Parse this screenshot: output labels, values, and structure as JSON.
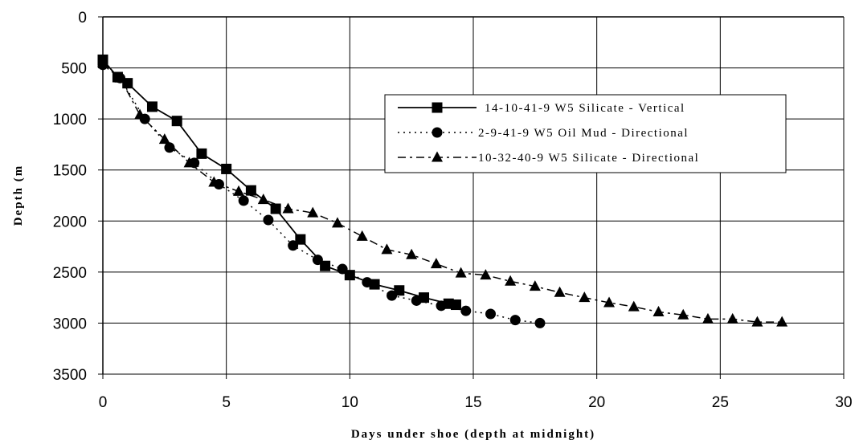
{
  "chart_data": {
    "type": "line",
    "title": "",
    "xlabel": "Days under shoe (depth at midnight)",
    "ylabel": "Depth (m",
    "xlim": [
      0,
      30
    ],
    "ylim": [
      0,
      3500
    ],
    "y_inverted": true,
    "grid": true,
    "legend_position": "center-right",
    "x_ticks": [
      "0",
      "5",
      "10",
      "15",
      "20",
      "25",
      "30"
    ],
    "y_ticks": [
      "0",
      "500",
      "1000",
      "1500",
      "2000",
      "2500",
      "3000",
      "3500"
    ],
    "series": [
      {
        "name": "14-10-41-9 W5 Silicate - Vertical",
        "line_style": "solid",
        "marker": "square",
        "x": [
          0,
          0.6,
          1,
          2,
          3,
          4,
          5,
          6,
          7,
          8,
          9,
          10,
          11,
          12,
          13,
          14,
          14.3
        ],
        "y": [
          420,
          590,
          650,
          880,
          1020,
          1340,
          1490,
          1700,
          1880,
          2180,
          2440,
          2530,
          2620,
          2680,
          2750,
          2810,
          2820
        ]
      },
      {
        "name": "2-9-41-9 W5 Oil Mud - Directional",
        "line_style": "dotted",
        "marker": "circle",
        "x": [
          0,
          0.7,
          1.7,
          2.7,
          3.7,
          4.7,
          5.7,
          6.7,
          7.7,
          8.7,
          9.7,
          10.7,
          11.7,
          12.7,
          13.7,
          14.7,
          15.7,
          16.7,
          17.7
        ],
        "y": [
          470,
          600,
          1000,
          1280,
          1430,
          1640,
          1800,
          1990,
          2240,
          2380,
          2470,
          2600,
          2730,
          2780,
          2830,
          2880,
          2910,
          2970,
          3000
        ]
      },
      {
        "name": "10-32-40-9 W5 Silicate - Directional",
        "line_style": "dash-dot",
        "marker": "triangle",
        "x": [
          0,
          0.7,
          1.5,
          2.5,
          3.5,
          4.5,
          5.5,
          6.5,
          7.5,
          8.5,
          9.5,
          10.5,
          11.5,
          12.5,
          13.5,
          14.5,
          15.5,
          16.5,
          17.5,
          18.5,
          19.5,
          20.5,
          21.5,
          22.5,
          23.5,
          24.5,
          25.5,
          26.5,
          27.5
        ],
        "y": [
          450,
          600,
          960,
          1200,
          1430,
          1620,
          1710,
          1790,
          1880,
          1920,
          2020,
          2150,
          2280,
          2330,
          2420,
          2510,
          2530,
          2590,
          2640,
          2700,
          2750,
          2800,
          2840,
          2890,
          2920,
          2960,
          2960,
          2990,
          2990
        ]
      }
    ]
  },
  "legend": {
    "entries": [
      "14-10-41-9 W5 Silicate - Vertical",
      "2-9-41-9 W5 Oil Mud - Directional",
      "10-32-40-9 W5 Silicate - Directional"
    ]
  }
}
